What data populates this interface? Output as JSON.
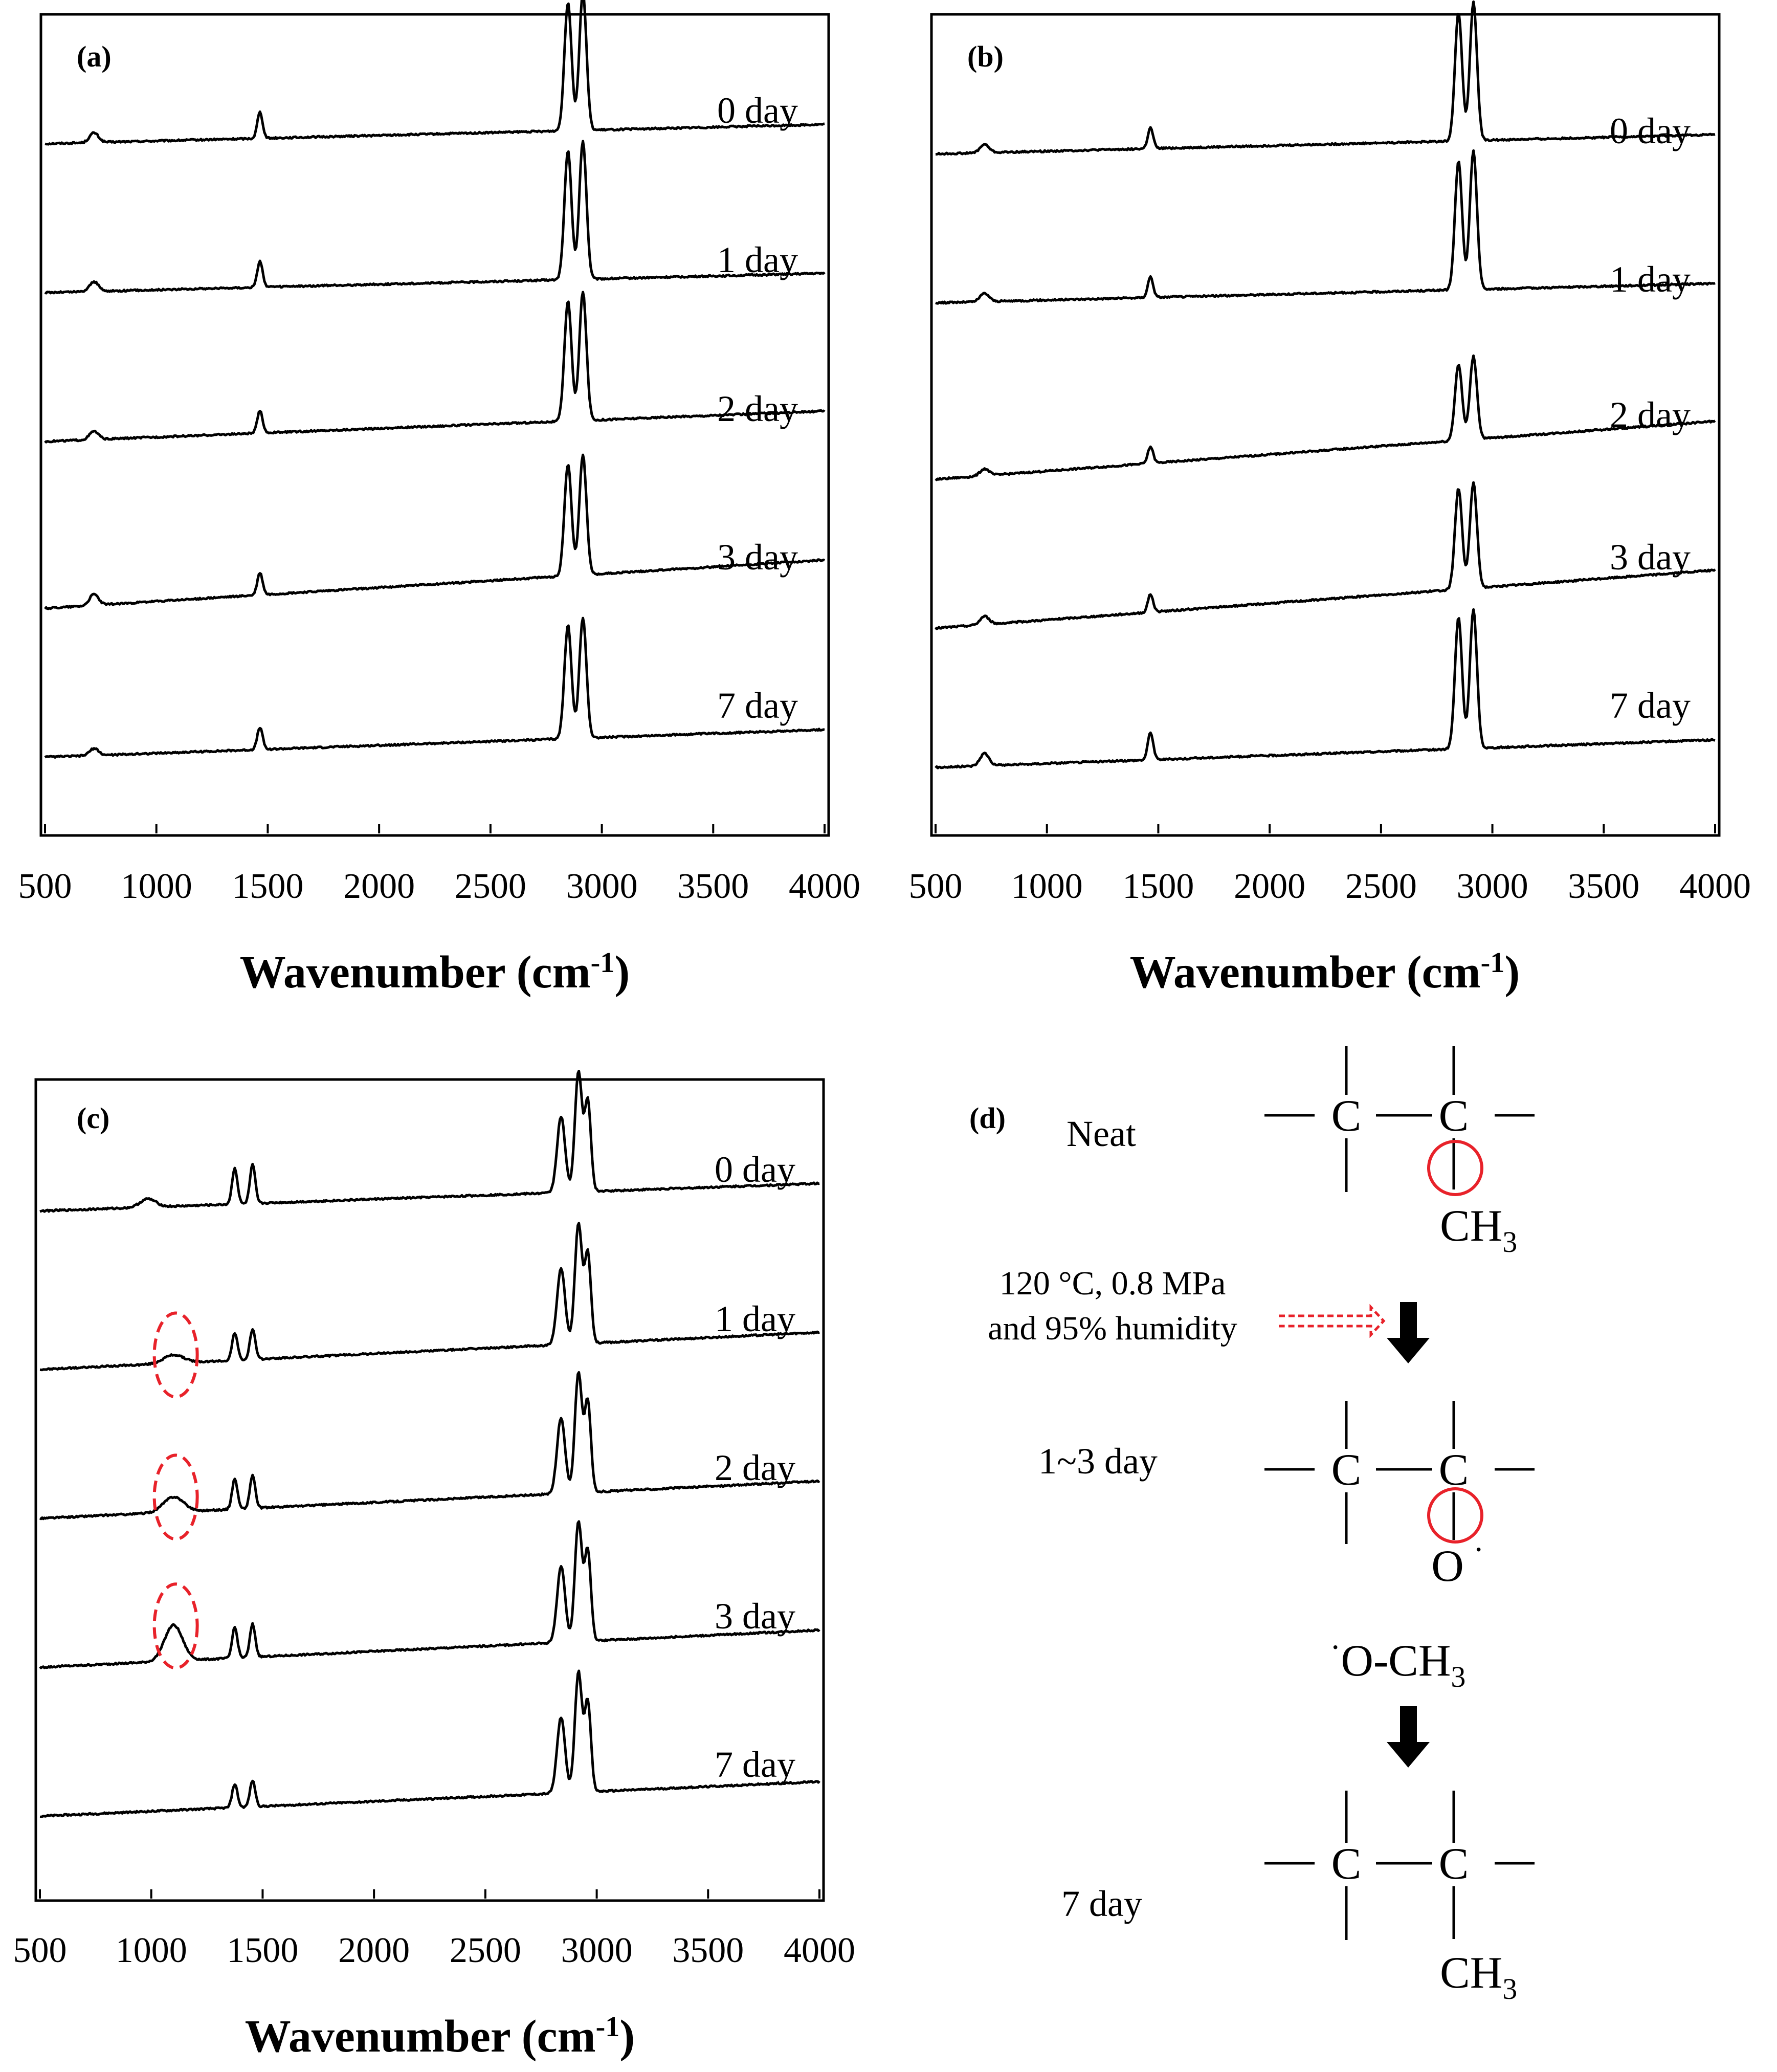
{
  "colors": {
    "ink": "#000000",
    "highlight": "#e8222a"
  },
  "chart_data": [
    {
      "panel_label": "(a)",
      "type": "line",
      "xlabel_main": "Wavenumber (cm",
      "xlabel_sup": "-1",
      "xlabel_close": ")",
      "xlim": [
        500,
        4000
      ],
      "xticks": [
        "500",
        "1000",
        "1500",
        "2000",
        "2500",
        "3000",
        "3500",
        "4000"
      ],
      "ylabel": "",
      "series": [
        {
          "name": "0 day",
          "baseline": [
            0.33,
            0.47
          ],
          "peaks": [
            [
              720,
              20,
              0.07
            ],
            [
              1465,
              12,
              0.19
            ],
            [
              2848,
              16,
              0.93
            ],
            [
              2915,
              16,
              1.0
            ]
          ]
        },
        {
          "name": "1 day",
          "baseline": [
            0.33,
            0.47
          ],
          "peaks": [
            [
              720,
              20,
              0.07
            ],
            [
              1465,
              12,
              0.19
            ],
            [
              2848,
              16,
              0.93
            ],
            [
              2915,
              16,
              1.0
            ]
          ]
        },
        {
          "name": "2 day",
          "baseline": [
            0.33,
            0.55
          ],
          "peaks": [
            [
              720,
              20,
              0.06
            ],
            [
              1465,
              12,
              0.16
            ],
            [
              2848,
              16,
              0.87
            ],
            [
              2915,
              16,
              0.93
            ]
          ]
        },
        {
          "name": "3 day",
          "baseline": [
            0.2,
            0.55
          ],
          "peaks": [
            [
              720,
              20,
              0.08
            ],
            [
              1465,
              12,
              0.16
            ],
            [
              2848,
              16,
              0.81
            ],
            [
              2915,
              16,
              0.87
            ]
          ]
        },
        {
          "name": "7 day",
          "baseline": [
            0.2,
            0.4
          ],
          "peaks": [
            [
              720,
              20,
              0.05
            ],
            [
              1465,
              12,
              0.16
            ],
            [
              2848,
              16,
              0.82
            ],
            [
              2915,
              16,
              0.87
            ]
          ]
        }
      ]
    },
    {
      "panel_label": "(b)",
      "type": "line",
      "xlabel_main": "Wavenumber (cm",
      "xlabel_sup": "-1",
      "xlabel_close": ")",
      "xlim": [
        500,
        4000
      ],
      "xticks": [
        "500",
        "1000",
        "1500",
        "2000",
        "2500",
        "3000",
        "3500",
        "4000"
      ],
      "ylabel": "",
      "series": [
        {
          "name": "0 day",
          "baseline": [
            0.33,
            0.47
          ],
          "peaks": [
            [
              720,
              20,
              0.06
            ],
            [
              1465,
              12,
              0.15
            ],
            [
              2848,
              16,
              0.93
            ],
            [
              2915,
              16,
              1.0
            ]
          ]
        },
        {
          "name": "1 day",
          "baseline": [
            0.33,
            0.47
          ],
          "peaks": [
            [
              720,
              20,
              0.06
            ],
            [
              1465,
              12,
              0.15
            ],
            [
              2848,
              16,
              0.93
            ],
            [
              2915,
              16,
              1.0
            ]
          ]
        },
        {
          "name": "2 day",
          "baseline": [
            0.13,
            0.55
          ],
          "peaks": [
            [
              720,
              20,
              0.05
            ],
            [
              1465,
              12,
              0.12
            ],
            [
              2848,
              16,
              0.55
            ],
            [
              2915,
              16,
              0.6
            ]
          ]
        },
        {
          "name": "3 day",
          "baseline": [
            0.13,
            0.55
          ],
          "peaks": [
            [
              720,
              20,
              0.06
            ],
            [
              1465,
              12,
              0.13
            ],
            [
              2848,
              16,
              0.73
            ],
            [
              2915,
              16,
              0.76
            ]
          ]
        },
        {
          "name": "7 day",
          "baseline": [
            0.2,
            0.4
          ],
          "peaks": [
            [
              720,
              20,
              0.09
            ],
            [
              1465,
              12,
              0.2
            ],
            [
              2848,
              16,
              0.95
            ],
            [
              2915,
              16,
              1.0
            ]
          ]
        }
      ]
    },
    {
      "panel_label": "(c)",
      "type": "line",
      "xlabel_main": "Wavenumber (cm",
      "xlabel_sup": "-1",
      "xlabel_close": ")",
      "xlim": [
        500,
        4000
      ],
      "xticks": [
        "500",
        "1000",
        "1500",
        "2000",
        "2500",
        "3000",
        "3500",
        "4000"
      ],
      "ylabel": "",
      "series": [
        {
          "name": "0 day",
          "baseline": [
            0.27,
            0.47
          ],
          "peaks": [
            [
              985,
              35,
              0.06
            ],
            [
              1375,
              12,
              0.26
            ],
            [
              1455,
              12,
              0.28
            ],
            [
              2840,
              18,
              0.55
            ],
            [
              2918,
              16,
              0.87
            ],
            [
              2960,
              14,
              0.65
            ]
          ]
        },
        {
          "name": "1 day",
          "baseline": [
            0.2,
            0.47
          ],
          "peaks": [
            [
              1100,
              45,
              0.06
            ],
            [
              1375,
              12,
              0.2
            ],
            [
              1455,
              12,
              0.22
            ],
            [
              2840,
              18,
              0.55
            ],
            [
              2918,
              16,
              0.87
            ],
            [
              2960,
              14,
              0.65
            ]
          ]
        },
        {
          "name": "2 day",
          "baseline": [
            0.2,
            0.47
          ],
          "peaks": [
            [
              1100,
              45,
              0.11
            ],
            [
              1375,
              12,
              0.22
            ],
            [
              1455,
              12,
              0.24
            ],
            [
              2840,
              18,
              0.55
            ],
            [
              2918,
              16,
              0.87
            ],
            [
              2960,
              14,
              0.65
            ]
          ]
        },
        {
          "name": "3 day",
          "baseline": [
            0.2,
            0.47
          ],
          "peaks": [
            [
              1100,
              40,
              0.26
            ],
            [
              1375,
              12,
              0.22
            ],
            [
              1455,
              12,
              0.24
            ],
            [
              2840,
              18,
              0.55
            ],
            [
              2918,
              16,
              0.87
            ],
            [
              2960,
              14,
              0.65
            ]
          ]
        },
        {
          "name": "7 day",
          "baseline": [
            0.2,
            0.45
          ],
          "peaks": [
            [
              1375,
              12,
              0.17
            ],
            [
              1455,
              12,
              0.19
            ],
            [
              2840,
              18,
              0.55
            ],
            [
              2918,
              16,
              0.87
            ],
            [
              2960,
              14,
              0.65
            ]
          ]
        }
      ],
      "highlight_regions": [
        "1 day",
        "2 day",
        "3 day"
      ]
    }
  ],
  "scheme": {
    "panel_label": "(d)",
    "neat_label": "Neat",
    "condition_line1": "120 °C, 0.8 MPa",
    "condition_line2": "and 95% humidity",
    "mid_label": "1~3 day",
    "final_label": "7 day",
    "carbon": "C",
    "methyl_base": "CH",
    "methyl_sub": "3",
    "oxygen": "O",
    "radical_dot": "·",
    "methoxy_text": "O-CH",
    "methoxy_sub": "3"
  }
}
